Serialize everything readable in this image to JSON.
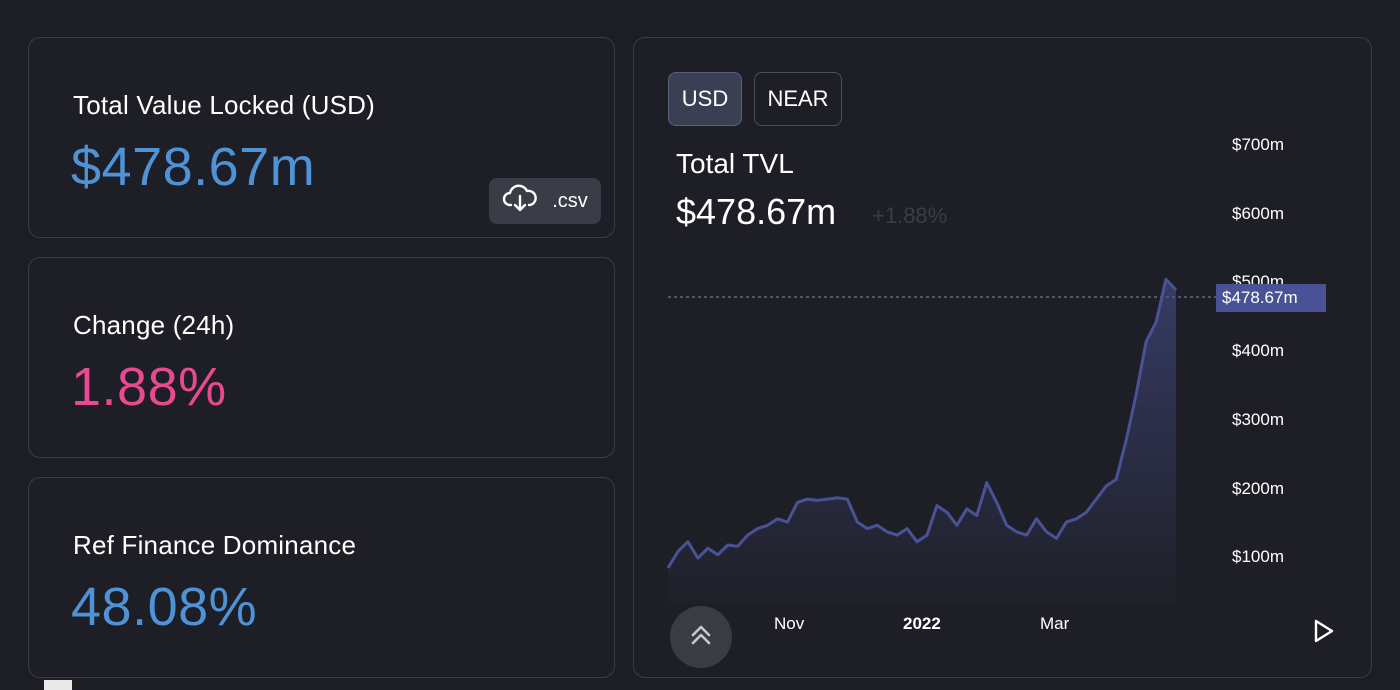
{
  "stats": [
    {
      "label": "Total Value Locked (USD)",
      "value": "$478.67m",
      "color": "#4f93d6"
    },
    {
      "label": "Change (24h)",
      "value": "1.88%",
      "color": "#e8498f"
    },
    {
      "label": "Ref Finance Dominance",
      "value": "48.08%",
      "color": "#4f93d6"
    }
  ],
  "csv_button": {
    "label": ".csv",
    "icon": "cloud-download-icon"
  },
  "chart": {
    "toggles": [
      {
        "label": "USD",
        "active": true
      },
      {
        "label": "NEAR",
        "active": false
      }
    ],
    "title": "Total TVL",
    "value": "$478.67m",
    "change": "+1.88%",
    "price_tag": "$478.67m",
    "accent_color": "#4a5296"
  },
  "chart_data": {
    "type": "area",
    "title": "Total TVL",
    "y_ticks": [
      "$700m",
      "$600m",
      "$500m",
      "$400m",
      "$300m",
      "$200m",
      "$100m"
    ],
    "x_ticks": [
      "Nov",
      "2022",
      "Mar"
    ],
    "ylim": [
      0,
      700
    ],
    "unit": "$m",
    "series": [
      {
        "values": [
          55,
          80,
          95,
          70,
          85,
          75,
          90,
          88,
          105,
          115,
          120,
          130,
          125,
          155,
          160,
          158,
          160,
          162,
          160,
          125,
          115,
          120,
          110,
          105,
          115,
          95,
          105,
          150,
          140,
          120,
          145,
          135,
          185,
          155,
          120,
          110,
          105,
          130,
          110,
          100,
          125,
          130,
          140,
          160,
          180,
          190,
          250,
          320,
          400,
          430,
          495,
          479
        ]
      }
    ]
  }
}
